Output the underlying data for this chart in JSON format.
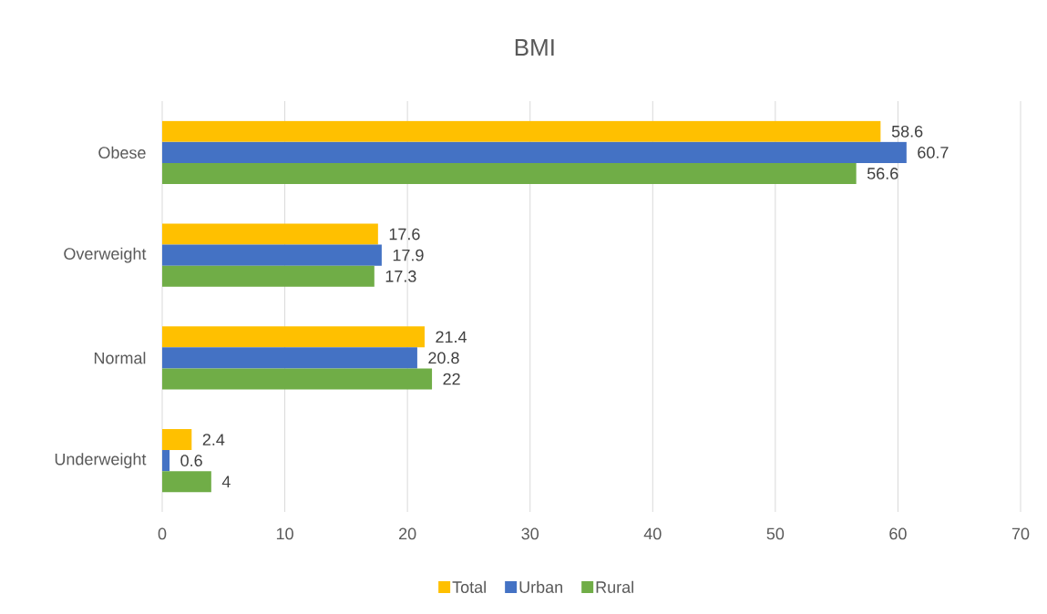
{
  "chart_data": {
    "type": "bar",
    "orientation": "horizontal",
    "title": "BMI",
    "categories": [
      "Obese",
      "Overweight",
      "Normal",
      "Underweight"
    ],
    "series": [
      {
        "name": "Total",
        "color": "#ffc000",
        "values": [
          58.6,
          17.6,
          21.4,
          2.4
        ]
      },
      {
        "name": "Urban",
        "color": "#4472c4",
        "values": [
          60.7,
          17.9,
          20.8,
          0.6
        ]
      },
      {
        "name": "Rural",
        "color": "#70ad47",
        "values": [
          56.6,
          17.3,
          22,
          4
        ]
      }
    ],
    "xlim": [
      0,
      70
    ],
    "xticks": [
      0,
      10,
      20,
      30,
      40,
      50,
      60,
      70
    ],
    "grid": "x",
    "legend": "bottom",
    "data_labels": true
  }
}
